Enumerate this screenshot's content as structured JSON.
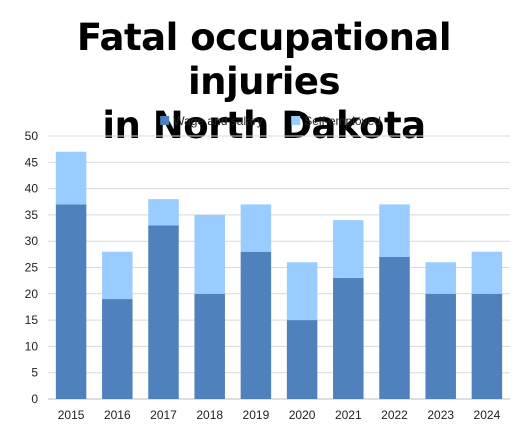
{
  "title_lines": [
    "Fatal occupational injuries",
    "in North Dakota"
  ],
  "chart_data": {
    "type": "bar",
    "stacked": true,
    "title": "Fatal occupational injuries in North Dakota",
    "categories": [
      "2015",
      "2016",
      "2017",
      "2018",
      "2019",
      "2020",
      "2021",
      "2022",
      "2023",
      "2024"
    ],
    "series": [
      {
        "name": "Wage and salary",
        "color": "#4f81bd",
        "values": [
          37,
          19,
          33,
          20,
          28,
          15,
          23,
          27,
          20,
          20
        ]
      },
      {
        "name": "Self-employed",
        "color": "#99ccff",
        "values": [
          10,
          9,
          5,
          15,
          9,
          11,
          11,
          10,
          6,
          8
        ]
      }
    ],
    "ylim": [
      0,
      50
    ],
    "yticks": [
      0,
      5,
      10,
      15,
      20,
      25,
      30,
      35,
      40,
      45,
      50
    ],
    "grid": true,
    "legend_position": "top-center",
    "xlabel": "",
    "ylabel": ""
  }
}
